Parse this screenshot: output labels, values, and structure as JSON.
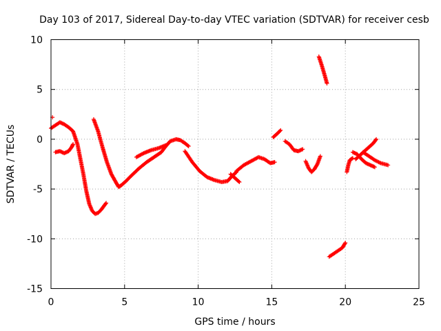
{
  "chart_data": {
    "type": "scatter",
    "title": "Day 103 of 2017, Sidereal Day-to-day VTEC variation (SDTVAR) for receiver cesb",
    "xlabel": "GPS time / hours",
    "ylabel": "SDTVAR / TECUs",
    "xlim": [
      0,
      25
    ],
    "ylim": [
      -15,
      10
    ],
    "xticks": [
      0,
      5,
      10,
      15,
      20,
      25
    ],
    "yticks": [
      -15,
      -10,
      -5,
      0,
      5,
      10
    ],
    "grid": true,
    "marker": "plus",
    "color": "#ff0000",
    "segments": [
      [
        [
          0.0,
          1.1
        ],
        [
          0.3,
          1.4
        ],
        [
          0.6,
          1.7
        ],
        [
          0.9,
          1.5
        ],
        [
          1.2,
          1.2
        ],
        [
          1.5,
          0.8
        ],
        [
          1.8,
          -0.5
        ],
        [
          2.0,
          -2.0
        ],
        [
          2.2,
          -3.5
        ],
        [
          2.4,
          -5.2
        ],
        [
          2.6,
          -6.5
        ],
        [
          2.8,
          -7.2
        ],
        [
          3.0,
          -7.5
        ],
        [
          3.2,
          -7.4
        ],
        [
          3.4,
          -7.1
        ],
        [
          3.6,
          -6.7
        ],
        [
          3.75,
          -6.4
        ]
      ],
      [
        [
          0.1,
          2.2
        ]
      ],
      [
        [
          0.3,
          -1.3
        ],
        [
          0.6,
          -1.2
        ],
        [
          0.9,
          -1.4
        ],
        [
          1.2,
          -1.2
        ],
        [
          1.4,
          -0.8
        ],
        [
          1.5,
          -0.5
        ]
      ],
      [
        [
          2.9,
          2.0
        ],
        [
          3.2,
          0.8
        ],
        [
          3.5,
          -0.8
        ],
        [
          3.8,
          -2.3
        ],
        [
          4.1,
          -3.5
        ],
        [
          4.4,
          -4.3
        ],
        [
          4.6,
          -4.8
        ],
        [
          4.8,
          -4.6
        ],
        [
          5.1,
          -4.2
        ],
        [
          5.5,
          -3.6
        ],
        [
          6.0,
          -2.9
        ],
        [
          6.5,
          -2.3
        ],
        [
          7.0,
          -1.8
        ],
        [
          7.5,
          -1.3
        ],
        [
          7.8,
          -0.7
        ],
        [
          8.1,
          -0.2
        ],
        [
          8.5,
          0.0
        ],
        [
          8.8,
          -0.1
        ],
        [
          9.1,
          -0.4
        ],
        [
          9.35,
          -0.7
        ]
      ],
      [
        [
          5.8,
          -1.8
        ],
        [
          6.3,
          -1.4
        ],
        [
          6.8,
          -1.1
        ],
        [
          7.3,
          -0.9
        ],
        [
          7.8,
          -0.6
        ]
      ],
      [
        [
          9.1,
          -1.2
        ],
        [
          9.6,
          -2.3
        ],
        [
          10.1,
          -3.2
        ],
        [
          10.6,
          -3.8
        ],
        [
          11.1,
          -4.1
        ],
        [
          11.6,
          -4.3
        ],
        [
          12.0,
          -4.2
        ],
        [
          12.3,
          -3.7
        ],
        [
          12.6,
          -3.3
        ]
      ],
      [
        [
          12.2,
          -3.5
        ],
        [
          12.5,
          -3.9
        ],
        [
          12.8,
          -4.3
        ]
      ],
      [
        [
          12.6,
          -3.2
        ],
        [
          13.1,
          -2.6
        ],
        [
          13.6,
          -2.2
        ],
        [
          14.1,
          -1.8
        ],
        [
          14.5,
          -2.0
        ],
        [
          14.9,
          -2.4
        ],
        [
          15.2,
          -2.3
        ]
      ],
      [
        [
          15.1,
          0.2
        ],
        [
          15.4,
          0.6
        ],
        [
          15.6,
          0.9
        ]
      ],
      [
        [
          15.9,
          -0.2
        ],
        [
          16.2,
          -0.5
        ],
        [
          16.5,
          -1.1
        ],
        [
          16.8,
          -1.2
        ],
        [
          17.1,
          -1.0
        ]
      ],
      [
        [
          17.3,
          -2.2
        ],
        [
          17.5,
          -2.9
        ],
        [
          17.7,
          -3.3
        ],
        [
          17.9,
          -3.0
        ],
        [
          18.1,
          -2.5
        ],
        [
          18.3,
          -1.7
        ]
      ],
      [
        [
          18.2,
          8.3
        ],
        [
          18.4,
          7.4
        ],
        [
          18.6,
          6.4
        ],
        [
          18.75,
          5.6
        ]
      ],
      [
        [
          18.9,
          -11.8
        ],
        [
          19.2,
          -11.5
        ],
        [
          19.5,
          -11.2
        ],
        [
          19.8,
          -10.9
        ],
        [
          20.0,
          -10.4
        ]
      ],
      [
        [
          20.1,
          -3.3
        ],
        [
          20.2,
          -2.6
        ],
        [
          20.3,
          -2.1
        ],
        [
          20.5,
          -1.9
        ]
      ],
      [
        [
          20.5,
          -1.3
        ],
        [
          20.8,
          -1.5
        ],
        [
          21.1,
          -2.0
        ],
        [
          21.4,
          -2.4
        ],
        [
          21.7,
          -2.6
        ],
        [
          22.0,
          -2.8
        ]
      ],
      [
        [
          20.7,
          -2.0
        ],
        [
          21.0,
          -1.6
        ],
        [
          21.3,
          -1.2
        ],
        [
          21.6,
          -0.8
        ],
        [
          21.9,
          -0.4
        ],
        [
          22.1,
          0.0
        ]
      ],
      [
        [
          21.2,
          -1.3
        ],
        [
          21.6,
          -1.7
        ],
        [
          22.0,
          -2.1
        ],
        [
          22.4,
          -2.4
        ],
        [
          22.9,
          -2.6
        ]
      ]
    ]
  }
}
